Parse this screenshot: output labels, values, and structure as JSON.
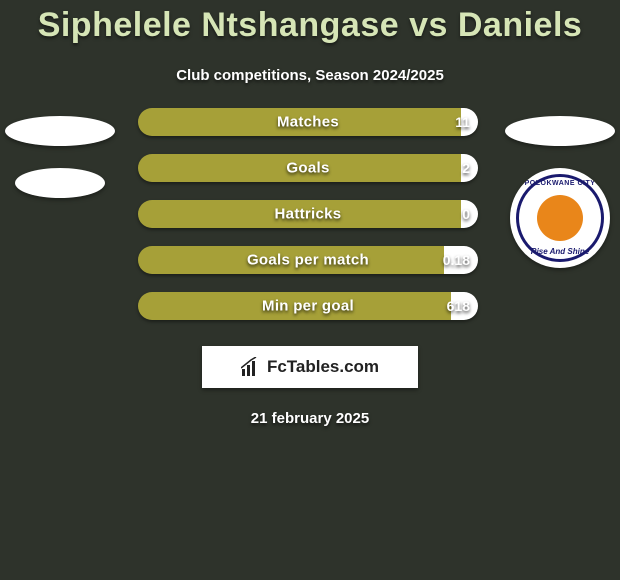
{
  "background_color": "#2e332b",
  "title": {
    "text": "Siphelele Ntshangase vs Daniels",
    "color": "#d6e5b6",
    "fontsize": 34,
    "fontweight": 900
  },
  "subtitle": {
    "text": "Club competitions, Season 2024/2025",
    "color": "#ffffff",
    "fontsize": 15
  },
  "players": {
    "left": {
      "placeholders": 2,
      "placeholder_color": "#ffffff"
    },
    "right": {
      "placeholders": 1,
      "placeholder_color": "#ffffff",
      "club": {
        "name_top": "POLOKWANE  CITY",
        "name_bot": "Rise And Shine",
        "ring_color": "#1a1a6e",
        "center_color": "#e9861a",
        "bg_color": "#ffffff"
      }
    }
  },
  "bars": {
    "track_height": 28,
    "track_radius": 14,
    "gap": 18,
    "left_color": "#a6a038",
    "right_color": "#ffffff",
    "label_color": "#ffffff",
    "label_fontsize": 15,
    "value_fontsize": 14,
    "rows": [
      {
        "label": "Matches",
        "left_val": "",
        "right_val": "11",
        "left_pct": 95,
        "right_pct": 5
      },
      {
        "label": "Goals",
        "left_val": "",
        "right_val": "2",
        "left_pct": 95,
        "right_pct": 5
      },
      {
        "label": "Hattricks",
        "left_val": "",
        "right_val": "0",
        "left_pct": 95,
        "right_pct": 5
      },
      {
        "label": "Goals per match",
        "left_val": "",
        "right_val": "0.18",
        "left_pct": 90,
        "right_pct": 10
      },
      {
        "label": "Min per goal",
        "left_val": "",
        "right_val": "618",
        "left_pct": 92,
        "right_pct": 8
      }
    ]
  },
  "brand": {
    "text": "FcTables.com",
    "box_bg": "#ffffff",
    "text_color": "#222222",
    "fontsize": 17
  },
  "date": {
    "text": "21 february 2025",
    "color": "#ffffff",
    "fontsize": 15
  }
}
